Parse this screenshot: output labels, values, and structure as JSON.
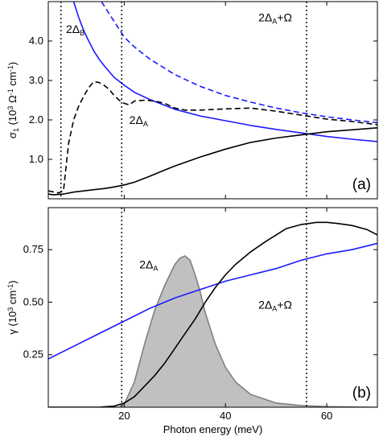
{
  "chart_data": [
    {
      "panel": "(a)",
      "type": "line",
      "xlim": [
        5,
        70
      ],
      "ylim": [
        0,
        5
      ],
      "ylabel": {
        "main": "σ",
        "sub": "1",
        "rest": " (10",
        "sup": "3",
        "unit": " Ω",
        "sup2": "-1",
        "unit2": " cm",
        "sup3": "-1",
        "close": ")"
      },
      "yticks": [
        1.0,
        2.0,
        3.0,
        4.0
      ],
      "ytick_labels": [
        "1.0",
        "2.0",
        "3.0",
        "4.0"
      ],
      "grid": false,
      "vlines": [
        7.5,
        19.5,
        56
      ],
      "annotations": [
        {
          "id": "2DB",
          "x": 8.5,
          "y": 4.2,
          "base": "2Δ",
          "sub": "B",
          "tail": ""
        },
        {
          "id": "2DA",
          "x": 21,
          "y": 1.9,
          "base": "2Δ",
          "sub": "A",
          "tail": ""
        },
        {
          "id": "2DAO",
          "x": 46.5,
          "y": 4.5,
          "base": "2Δ",
          "sub": "A",
          "tail": "+Ω"
        }
      ],
      "series": [
        {
          "style": "blue-solid",
          "color": "#1a1aff",
          "dashed": false,
          "x": [
            10,
            11,
            12,
            13,
            14,
            15,
            16,
            18,
            20,
            22,
            25,
            30,
            35,
            40,
            45,
            50,
            55,
            60,
            65,
            70
          ],
          "y": [
            5.0,
            4.6,
            4.27,
            4.0,
            3.75,
            3.55,
            3.38,
            3.08,
            2.88,
            2.7,
            2.52,
            2.27,
            2.1,
            1.98,
            1.86,
            1.76,
            1.67,
            1.58,
            1.51,
            1.45
          ]
        },
        {
          "style": "blue-dashed",
          "color": "#1a1aff",
          "dashed": true,
          "x": [
            15.5,
            17,
            19,
            20,
            22,
            25,
            30,
            35,
            40,
            45,
            50,
            55,
            60,
            65,
            70
          ],
          "y": [
            5.0,
            4.7,
            4.3,
            4.1,
            3.85,
            3.55,
            3.15,
            2.85,
            2.62,
            2.45,
            2.3,
            2.18,
            2.08,
            2.0,
            1.93
          ]
        },
        {
          "style": "black-dashed",
          "color": "#000000",
          "dashed": true,
          "x": [
            5,
            7,
            8,
            9,
            10,
            11,
            12,
            13,
            14,
            15,
            16,
            17,
            18,
            19,
            20,
            21,
            22,
            24,
            26,
            28,
            30,
            32,
            35,
            40,
            45,
            50,
            55,
            60,
            65,
            70
          ],
          "y": [
            0.2,
            0.15,
            0.2,
            1.4,
            2.0,
            2.35,
            2.6,
            2.82,
            2.97,
            2.95,
            2.88,
            2.78,
            2.62,
            2.5,
            2.42,
            2.38,
            2.48,
            2.5,
            2.48,
            2.42,
            2.3,
            2.25,
            2.25,
            2.28,
            2.3,
            2.22,
            2.12,
            2.02,
            1.96,
            1.88
          ]
        },
        {
          "style": "black-solid",
          "color": "#000000",
          "dashed": false,
          "x": [
            5,
            6,
            8,
            10,
            12,
            14,
            16,
            18,
            20,
            22,
            25,
            28,
            30,
            35,
            40,
            45,
            50,
            55,
            60,
            65,
            70
          ],
          "y": [
            0.12,
            0.1,
            0.12,
            0.17,
            0.2,
            0.23,
            0.26,
            0.3,
            0.35,
            0.42,
            0.57,
            0.73,
            0.83,
            1.06,
            1.26,
            1.43,
            1.54,
            1.62,
            1.7,
            1.75,
            1.8
          ]
        }
      ]
    },
    {
      "panel": "(b)",
      "type": "line",
      "xlim": [
        5,
        70
      ],
      "ylim": [
        0,
        0.95
      ],
      "xlabel": "Photon energy (meV)",
      "ylabel": {
        "main": "γ",
        "rest": " (10",
        "sup": "3",
        "unit": " cm",
        "sup2": "-1",
        "close": ")"
      },
      "xticks": [
        20,
        40,
        60
      ],
      "xtick_labels": [
        "20",
        "40",
        "60"
      ],
      "yticks": [
        0.25,
        0.5,
        0.75
      ],
      "ytick_labels": [
        "0.25",
        "0.50",
        "0.75"
      ],
      "grid": false,
      "vlines": [
        19.5,
        56
      ],
      "annotations": [
        {
          "id": "2DA",
          "x": 23,
          "y": 0.66,
          "base": "2Δ",
          "sub": "A",
          "tail": ""
        },
        {
          "id": "2DAO",
          "x": 46.5,
          "y": 0.47,
          "base": "2Δ",
          "sub": "A",
          "tail": "+Ω"
        }
      ],
      "series": [
        {
          "style": "gray-filled",
          "color": "#808080",
          "fill": "#c0c0c0",
          "dashed": false,
          "x": [
            5,
            19,
            20,
            22,
            24,
            26,
            28,
            30,
            31,
            32,
            33,
            34,
            35,
            36,
            38,
            40,
            42,
            45,
            50,
            55,
            60,
            65,
            70
          ],
          "y": [
            0,
            0,
            0.015,
            0.12,
            0.3,
            0.46,
            0.58,
            0.68,
            0.71,
            0.72,
            0.7,
            0.63,
            0.55,
            0.45,
            0.3,
            0.19,
            0.12,
            0.06,
            0.02,
            0.008,
            0.003,
            0.001,
            0
          ]
        },
        {
          "style": "blue-solid",
          "color": "#1a1aff",
          "dashed": false,
          "x": [
            5,
            10,
            15,
            20,
            25,
            30,
            35,
            40,
            45,
            50,
            55,
            60,
            65,
            70
          ],
          "y": [
            0.23,
            0.29,
            0.35,
            0.41,
            0.47,
            0.52,
            0.56,
            0.6,
            0.63,
            0.66,
            0.7,
            0.73,
            0.75,
            0.78
          ]
        },
        {
          "style": "black-solid",
          "color": "#000000",
          "dashed": false,
          "x": [
            5,
            10,
            15,
            18,
            20,
            22,
            24,
            26,
            28,
            30,
            32,
            34,
            36,
            38,
            40,
            42,
            45,
            48,
            50,
            52,
            55,
            58,
            60,
            62,
            65,
            68,
            70
          ],
          "y": [
            0,
            0,
            0,
            0.005,
            0.02,
            0.05,
            0.1,
            0.15,
            0.21,
            0.28,
            0.35,
            0.42,
            0.5,
            0.57,
            0.63,
            0.68,
            0.74,
            0.79,
            0.82,
            0.85,
            0.87,
            0.88,
            0.88,
            0.875,
            0.865,
            0.845,
            0.82
          ]
        }
      ]
    }
  ]
}
